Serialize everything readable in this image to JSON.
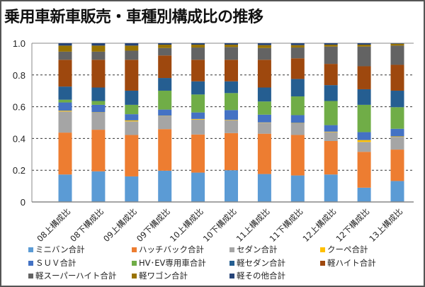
{
  "chart_data": {
    "type": "bar",
    "stacked": true,
    "title": "乗用車新車販売・車種別構成比の推移",
    "xlabel": "",
    "ylabel": "",
    "ylim": [
      0,
      1.0
    ],
    "yticks": [
      "0",
      "0.2",
      "0.4",
      "0.6",
      "0.8",
      "1.0"
    ],
    "grid": true,
    "legend_position": "bottom",
    "categories": [
      "08上構成比",
      "08下構成比",
      "09上構成比",
      "09下構成比",
      "10上構成比",
      "10下構成比",
      "11上構成比",
      "11下構成比",
      "12上構成比",
      "12下構成比",
      "13上構成比"
    ],
    "series": [
      {
        "name": "ミニバン合計",
        "color": "#5B9BD5",
        "values": [
          0.173,
          0.193,
          0.161,
          0.197,
          0.185,
          0.2,
          0.176,
          0.167,
          0.173,
          0.09,
          0.132
        ]
      },
      {
        "name": "ハッチバック合計",
        "color": "#ED7D31",
        "values": [
          0.264,
          0.262,
          0.261,
          0.262,
          0.24,
          0.234,
          0.254,
          0.255,
          0.211,
          0.226,
          0.198
        ]
      },
      {
        "name": "セダン合計",
        "color": "#A5A5A5",
        "values": [
          0.133,
          0.108,
          0.086,
          0.082,
          0.094,
          0.082,
          0.069,
          0.074,
          0.056,
          0.062,
          0.08
        ]
      },
      {
        "name": "クーペ合計",
        "color": "#FFC000",
        "values": [
          0.005,
          0.002,
          0.006,
          0.002,
          0.004,
          0.002,
          0.002,
          0.002,
          0.003,
          0.012,
          0.003
        ]
      },
      {
        "name": "ＳＵＶ合計",
        "color": "#4472C4",
        "values": [
          0.052,
          0.047,
          0.039,
          0.039,
          0.041,
          0.061,
          0.049,
          0.049,
          0.041,
          0.05,
          0.048
        ]
      },
      {
        "name": "HV･EV専用車合計",
        "color": "#70AD47",
        "values": [
          0.017,
          0.024,
          0.059,
          0.119,
          0.113,
          0.107,
          0.083,
          0.118,
          0.152,
          0.172,
          0.136
        ]
      },
      {
        "name": "軽セダン合計",
        "color": "#255E91",
        "values": [
          0.083,
          0.085,
          0.089,
          0.08,
          0.083,
          0.074,
          0.088,
          0.11,
          0.1,
          0.098,
          0.104
        ]
      },
      {
        "name": "軽ハイト合計",
        "color": "#9E480E",
        "values": [
          0.169,
          0.175,
          0.195,
          0.142,
          0.136,
          0.136,
          0.175,
          0.13,
          0.134,
          0.145,
          0.163
        ]
      },
      {
        "name": "軽スーパーハイト合計",
        "color": "#636363",
        "values": [
          0.051,
          0.051,
          0.057,
          0.047,
          0.077,
          0.08,
          0.074,
          0.068,
          0.109,
          0.124,
          0.121
        ]
      },
      {
        "name": "軽ワゴン合計",
        "color": "#997300",
        "values": [
          0.038,
          0.038,
          0.032,
          0.021,
          0.018,
          0.015,
          0.018,
          0.015,
          0.012,
          0.012,
          0.012
        ]
      },
      {
        "name": "軽その他合計",
        "color": "#264478",
        "values": [
          0.015,
          0.015,
          0.015,
          0.009,
          0.009,
          0.009,
          0.012,
          0.012,
          0.009,
          0.009,
          0.003
        ]
      }
    ]
  }
}
